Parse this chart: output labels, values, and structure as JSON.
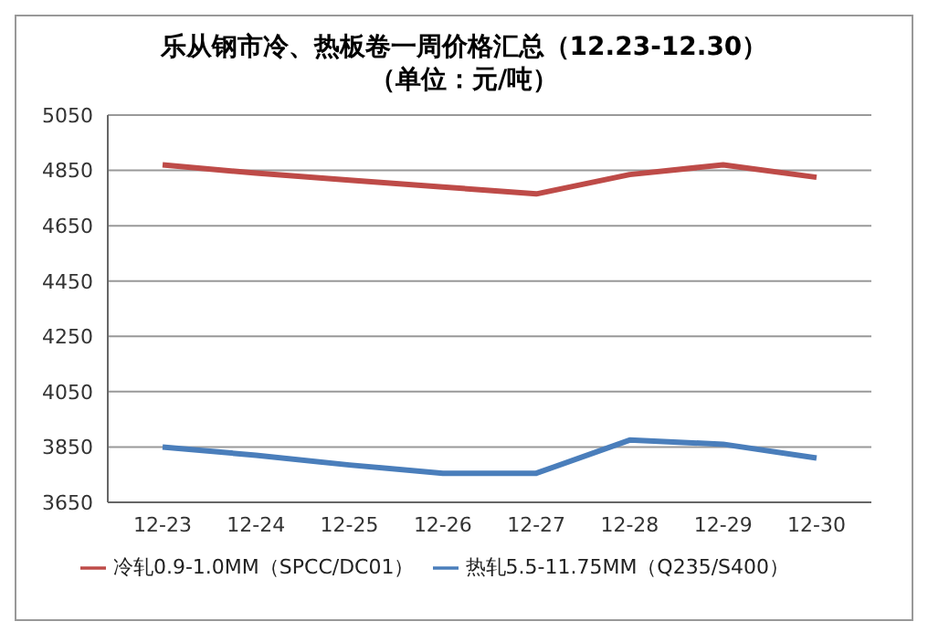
{
  "chart_data": {
    "type": "line",
    "title": "乐从钢市冷、热板卷一周价格汇总（12.23-12.30）",
    "subtitle": "（单位：元/吨）",
    "categories": [
      "12-23",
      "12-24",
      "12-25",
      "12-26",
      "12-27",
      "12-28",
      "12-29",
      "12-30"
    ],
    "series": [
      {
        "name": "热轧5.5-11.75MM（Q235/S400）",
        "color": "#4a7ebb",
        "values": [
          3850,
          3820,
          3785,
          3755,
          3755,
          3875,
          3860,
          3810
        ]
      },
      {
        "name": "冷轧0.9-1.0MM（SPCC/DC01）",
        "color": "#be4b48",
        "values": [
          4870,
          4840,
          4815,
          4790,
          4765,
          4835,
          4870,
          4825
        ]
      }
    ],
    "ylim": [
      3650,
      5050
    ],
    "yticks": [
      3650,
      3850,
      4050,
      4250,
      4450,
      4650,
      4850,
      5050
    ],
    "grid": "y",
    "legend": "bottom",
    "marker": "none",
    "line_style": "solid"
  }
}
